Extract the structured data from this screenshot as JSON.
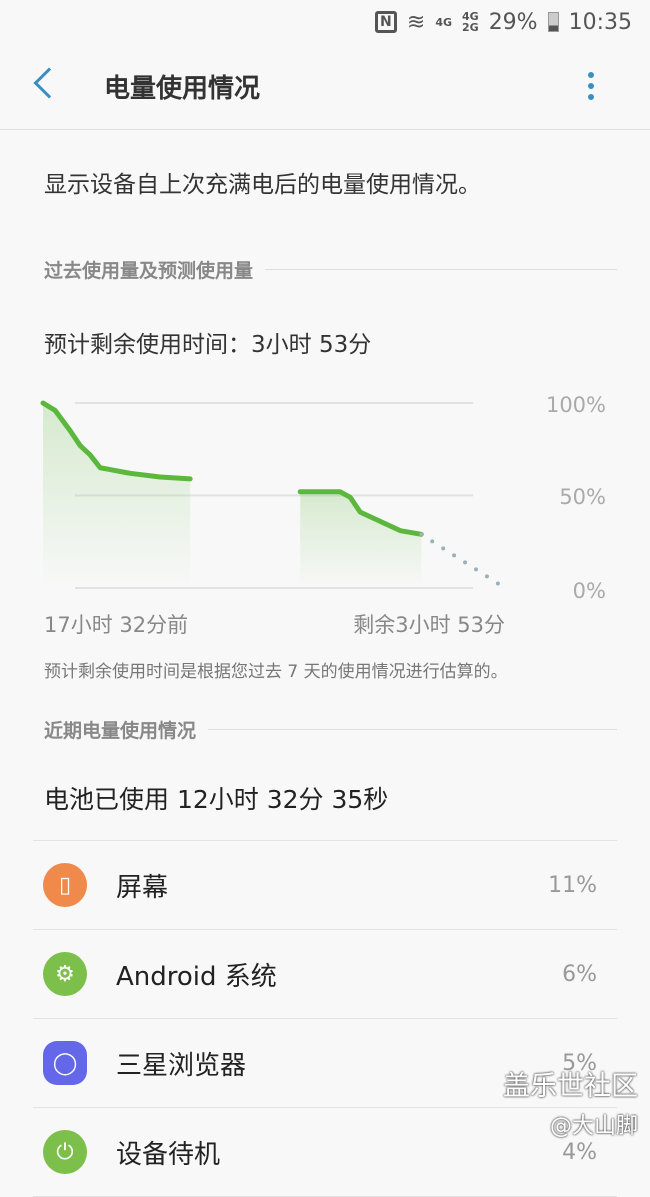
{
  "status": {
    "nfc": "N",
    "net1": "4G",
    "net2a": "4G",
    "net2b": "2G",
    "battery": "29%",
    "time": "10:35"
  },
  "appbar": {
    "title": "电量使用情况"
  },
  "description": "显示设备自上次充满电后的电量使用情况。",
  "section_past": "过去使用量及预测使用量",
  "estimate": "预计剩余使用时间：3小时 53分",
  "chart_data": {
    "type": "line",
    "xlabel_left": "17小时 32分前",
    "xlabel_right": "剩余3小时 53分",
    "y_ticks": [
      "100%",
      "50%",
      "0%"
    ],
    "ylim": [
      0,
      100
    ],
    "xlim": [
      -17.53,
      3.88
    ],
    "series": [
      {
        "kind": "history",
        "points": [
          [
            -17.53,
            100
          ],
          [
            -16.97,
            96
          ],
          [
            -16.27,
            85
          ],
          [
            -15.81,
            77
          ],
          [
            -15.35,
            72
          ],
          [
            -14.88,
            65
          ],
          [
            -14.42,
            64
          ],
          [
            -13.49,
            62
          ],
          [
            -12.1,
            60
          ],
          [
            -10.71,
            59
          ]
        ]
      },
      {
        "kind": "history",
        "points": [
          [
            -5.61,
            52
          ],
          [
            -3.76,
            52
          ],
          [
            -3.29,
            49
          ],
          [
            -2.83,
            41
          ],
          [
            -1.9,
            36
          ],
          [
            -0.97,
            31
          ],
          [
            0,
            29
          ]
        ]
      },
      {
        "kind": "prediction",
        "points": [
          [
            0,
            29
          ],
          [
            3.88,
            0
          ]
        ]
      }
    ],
    "line_color": "#5cb83c",
    "prediction_color": "#9bb0b8"
  },
  "note": "预计剩余使用时间是根据您过去 7 天的使用情况进行估算的。",
  "section_recent": "近期电量使用情况",
  "used": "电池已使用 12小时 32分 35秒",
  "apps": [
    {
      "label": "屏幕",
      "percent": "11%",
      "icon": "screen-icon",
      "color": "#ef8a4a"
    },
    {
      "label": "Android 系统",
      "percent": "6%",
      "icon": "gear-icon",
      "color": "#7cbf4a"
    },
    {
      "label": "三星浏览器",
      "percent": "5%",
      "icon": "planet-icon",
      "color": "#6468e8"
    },
    {
      "label": "设备待机",
      "percent": "4%",
      "icon": "power-icon",
      "color": "#7cbf4a"
    }
  ],
  "watermark": {
    "line1": "盖乐世社区",
    "line2": "@大山脚"
  }
}
